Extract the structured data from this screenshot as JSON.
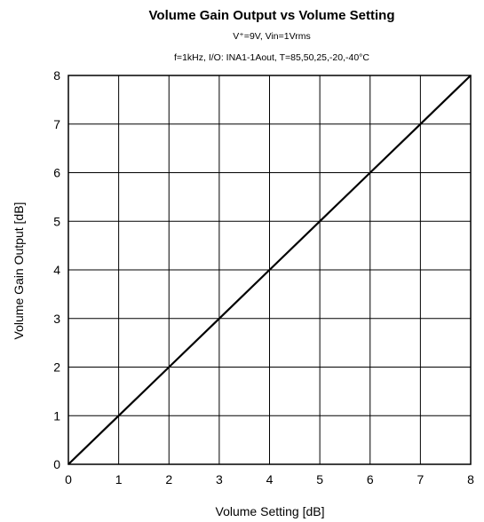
{
  "chart_data": {
    "type": "line",
    "title": "Volume Gain Output  vs Volume Setting",
    "subtitles": [
      "V⁺=9V, Vin=1Vrms",
      "f=1kHz,  I/O: INA1-1Aout, T=85,50,25,-20,-40°C"
    ],
    "xlabel": "Volume Setting [dB]",
    "ylabel": "Volume Gain Output [dB]",
    "xlim": [
      0,
      8
    ],
    "ylim": [
      0,
      8
    ],
    "xticks": [
      "0",
      "1",
      "2",
      "3",
      "4",
      "5",
      "6",
      "7",
      "8"
    ],
    "yticks": [
      "0",
      "1",
      "2",
      "3",
      "4",
      "5",
      "6",
      "7",
      "8"
    ],
    "grid": true,
    "series": [
      {
        "x": [
          0,
          1,
          2,
          3,
          4,
          5,
          6,
          7,
          8
        ],
        "y": [
          0,
          1,
          2,
          3,
          4,
          5,
          6,
          7,
          8
        ],
        "color": "#000000"
      }
    ]
  }
}
